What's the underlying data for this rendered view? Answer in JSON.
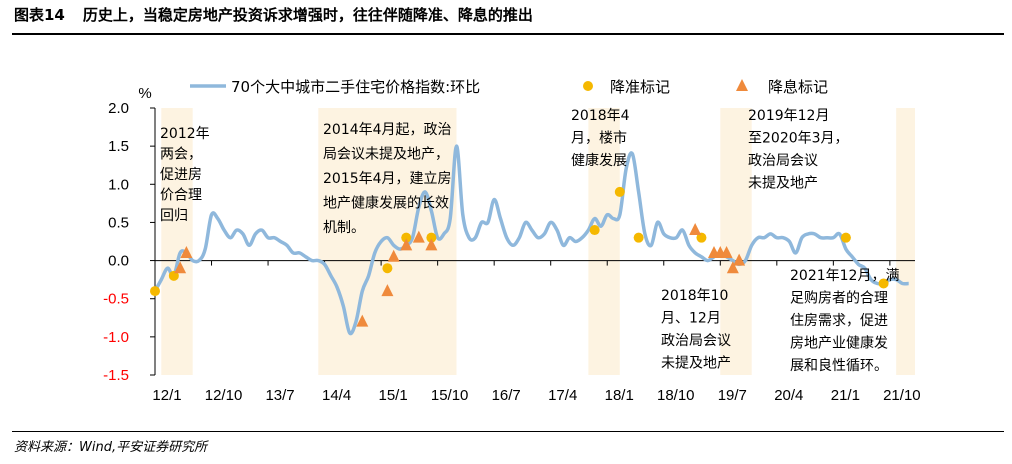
{
  "figure": {
    "label": "图表14",
    "title": "历史上，当稳定房地产投资诉求增强时，往往伴随降准、降息的推出",
    "source": "资料来源：Wind,平安证券研究所"
  },
  "chart_data": {
    "type": "line",
    "unit_label": "%",
    "ylim": [
      -1.5,
      2.0
    ],
    "yticks": [
      "2.0",
      "1.5",
      "1.0",
      "0.5",
      "0.0",
      "-0.5",
      "-1.0",
      "-1.5"
    ],
    "ytick_values": [
      2.0,
      1.5,
      1.0,
      0.5,
      0.0,
      -0.5,
      -1.0,
      -1.5
    ],
    "xlim": [
      0,
      121
    ],
    "xticks": [
      "12/1",
      "12/10",
      "13/7",
      "14/4",
      "15/1",
      "15/10",
      "16/7",
      "17/4",
      "18/1",
      "18/10",
      "19/7",
      "20/4",
      "21/1",
      "21/10"
    ],
    "xtick_values": [
      0,
      9,
      18,
      27,
      36,
      45,
      54,
      63,
      72,
      81,
      90,
      99,
      108,
      117
    ],
    "colors": {
      "line": "#8fb8dc",
      "rrr": "#f5b800",
      "rate": "#ef8a3c",
      "shade": "#fdf3e1",
      "negative_tick": "#ff0000"
    },
    "series": [
      {
        "name": "70个大中城市二手住宅价格指数:环比",
        "x": [
          0,
          1,
          2,
          3,
          4,
          5,
          6,
          7,
          8,
          9,
          10,
          11,
          12,
          13,
          14,
          15,
          16,
          17,
          18,
          19,
          20,
          21,
          22,
          23,
          24,
          25,
          26,
          27,
          28,
          29,
          30,
          31,
          32,
          33,
          34,
          35,
          36,
          37,
          38,
          39,
          40,
          41,
          42,
          43,
          44,
          45,
          46,
          47,
          48,
          49,
          50,
          51,
          52,
          53,
          54,
          55,
          56,
          57,
          58,
          59,
          60,
          61,
          62,
          63,
          64,
          65,
          66,
          67,
          68,
          69,
          70,
          71,
          72,
          73,
          74,
          75,
          76,
          77,
          78,
          79,
          80,
          81,
          82,
          83,
          84,
          85,
          86,
          87,
          88,
          89,
          90,
          91,
          92,
          93,
          94,
          95,
          96,
          97,
          98,
          99,
          100,
          101,
          102,
          103,
          104,
          105,
          106,
          107,
          108,
          109,
          110,
          111,
          112,
          113,
          114,
          115,
          116,
          117,
          118,
          119,
          120
        ],
        "values": [
          -0.4,
          -0.25,
          -0.1,
          -0.2,
          0.1,
          0.1,
          0.0,
          0.0,
          0.15,
          0.6,
          0.55,
          0.4,
          0.3,
          0.4,
          0.35,
          0.2,
          0.35,
          0.4,
          0.3,
          0.3,
          0.25,
          0.2,
          0.1,
          0.1,
          0.05,
          0.0,
          0.0,
          -0.05,
          -0.2,
          -0.35,
          -0.6,
          -0.95,
          -0.8,
          -0.4,
          -0.2,
          0.1,
          0.25,
          0.3,
          0.2,
          0.15,
          0.2,
          0.3,
          0.7,
          0.9,
          0.65,
          0.3,
          0.35,
          0.55,
          1.5,
          0.6,
          0.3,
          0.3,
          0.5,
          0.5,
          0.8,
          0.55,
          0.3,
          0.2,
          0.3,
          0.5,
          0.4,
          0.3,
          0.35,
          0.5,
          0.4,
          0.2,
          0.3,
          0.25,
          0.3,
          0.4,
          0.55,
          0.45,
          0.6,
          0.55,
          0.6,
          1.2,
          1.4,
          0.9,
          0.35,
          0.2,
          0.5,
          0.35,
          0.3,
          0.3,
          0.4,
          0.2,
          0.1,
          0.05,
          0.0,
          0.05,
          0.1,
          0.05,
          0.0,
          -0.05,
          0.0,
          0.2,
          0.3,
          0.3,
          0.35,
          0.3,
          0.3,
          0.25,
          0.1,
          0.3,
          0.35,
          0.35,
          0.3,
          0.3,
          0.3,
          0.35,
          0.15,
          0.05,
          -0.05,
          -0.1,
          -0.25,
          -0.3,
          -0.3,
          -0.25,
          -0.25,
          -0.3,
          -0.3
        ]
      }
    ],
    "rrr_cuts": {
      "name": "降准标记",
      "points": [
        [
          0,
          -0.4
        ],
        [
          3,
          -0.2
        ],
        [
          37,
          -0.1
        ],
        [
          40,
          0.3
        ],
        [
          44,
          0.3
        ],
        [
          70,
          0.4
        ],
        [
          74,
          0.9
        ],
        [
          77,
          0.3
        ],
        [
          87,
          0.3
        ],
        [
          110,
          0.3
        ],
        [
          116,
          -0.3
        ]
      ]
    },
    "rate_cuts": {
      "name": "降息标记",
      "points": [
        [
          4,
          -0.1
        ],
        [
          5,
          0.1
        ],
        [
          33,
          -0.8
        ],
        [
          37,
          -0.4
        ],
        [
          38,
          0.05
        ],
        [
          40,
          0.2
        ],
        [
          42,
          0.3
        ],
        [
          44,
          0.2
        ],
        [
          86,
          0.4
        ],
        [
          89,
          0.1
        ],
        [
          90,
          0.1
        ],
        [
          91,
          0.1
        ],
        [
          92,
          -0.1
        ],
        [
          93,
          0.0
        ]
      ]
    },
    "shaded_ranges": [
      [
        1,
        6
      ],
      [
        26,
        48
      ],
      [
        69,
        74
      ],
      [
        90,
        95
      ],
      [
        118,
        121
      ]
    ],
    "annotations": [
      {
        "lines": [
          "2012年",
          "两会，",
          "促进房",
          "价合理",
          "回归"
        ]
      },
      {
        "lines": [
          "2014年4月起，政治",
          "局会议未提及地产，",
          "2015年4月，建立房",
          "地产健康发展的长效",
          "机制。"
        ]
      },
      {
        "lines": [
          "2018年4",
          "月，楼市",
          "健康发展"
        ]
      },
      {
        "lines": [
          "2019年12月",
          "至2020年3月，",
          "政治局会议",
          "未提及地产"
        ]
      },
      {
        "lines": [
          "2018年10",
          "月、12月",
          "政治局会议",
          "未提及地产"
        ]
      },
      {
        "lines": [
          "2021年12月，满",
          "足购房者的合理",
          "住房需求，促进",
          "房地产业健康发",
          "展和良性循环。"
        ]
      }
    ]
  }
}
